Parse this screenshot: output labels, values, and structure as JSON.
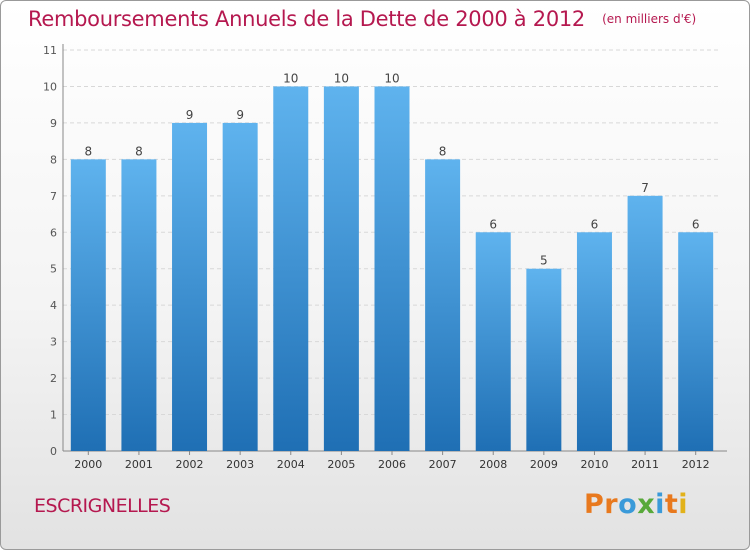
{
  "header": {
    "title": "Remboursements Annuels de la Dette de 2000 à 2012",
    "subtitle": "(en milliers d'€)"
  },
  "footer": {
    "commune": "ESCRIGNELLES",
    "logo_text": "Proxiti",
    "logo_colors": [
      "#e8791e",
      "#e8791e",
      "#3a9ad9",
      "#58a93a",
      "#3a9ad9",
      "#e8791e",
      "#e2b21a"
    ]
  },
  "colors": {
    "title": "#b5184f",
    "bar_top": "#5fb3ee",
    "bar_bottom": "#1f6fb4",
    "grid": "#d8d8d8"
  },
  "chart_data": {
    "type": "bar",
    "title": "Remboursements Annuels de la Dette de 2000 à 2012",
    "subtitle": "(en milliers d'€)",
    "categories": [
      "2000",
      "2001",
      "2002",
      "2003",
      "2004",
      "2005",
      "2006",
      "2007",
      "2008",
      "2009",
      "2010",
      "2011",
      "2012"
    ],
    "values": [
      8,
      8,
      9,
      9,
      10,
      10,
      10,
      8,
      6,
      5,
      6,
      7,
      6
    ],
    "ylim": [
      0,
      11
    ],
    "yticks": [
      0,
      1,
      2,
      3,
      4,
      5,
      6,
      7,
      8,
      9,
      10,
      11
    ],
    "grid": true,
    "data_labels": true,
    "legend": false
  }
}
